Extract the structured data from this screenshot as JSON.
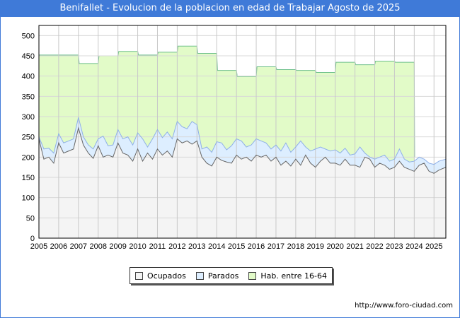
{
  "chart_data": {
    "type": "area",
    "title": "Benifallet - Evolucion de la poblacion en edad de Trabajar Agosto de 2025",
    "xlabel": "",
    "ylabel": "",
    "ylim": [
      0,
      525
    ],
    "xlim": [
      2005,
      2025.6
    ],
    "yticks": [
      "0",
      "50",
      "100",
      "150",
      "200",
      "250",
      "300",
      "350",
      "400",
      "450",
      "500"
    ],
    "xticks": [
      "2005",
      "2006",
      "2007",
      "2008",
      "2009",
      "2010",
      "2011",
      "2012",
      "2013",
      "2014",
      "2015",
      "2016",
      "2017",
      "2018",
      "2019",
      "2020",
      "2021",
      "2022",
      "2023",
      "2024",
      "2025"
    ],
    "grid": true,
    "legend_position": "bottom",
    "x_step": "quarterly from 2005",
    "series": [
      {
        "name": "Ocupados",
        "color": "#f4f4f4",
        "line": "#666666",
        "values": [
          245,
          195,
          200,
          185,
          235,
          210,
          215,
          220,
          272,
          230,
          210,
          197,
          228,
          200,
          205,
          200,
          235,
          210,
          205,
          190,
          220,
          190,
          210,
          195,
          220,
          205,
          215,
          200,
          245,
          235,
          240,
          232,
          240,
          200,
          185,
          178,
          200,
          192,
          188,
          185,
          205,
          195,
          200,
          190,
          205,
          200,
          205,
          190,
          200,
          180,
          190,
          178,
          195,
          180,
          205,
          185,
          175,
          190,
          200,
          185,
          185,
          180,
          195,
          180,
          180,
          175,
          200,
          195,
          175,
          185,
          180,
          170,
          175,
          190,
          175,
          170,
          165,
          180,
          185,
          165,
          160,
          168,
          175
        ]
      },
      {
        "name": "Parados",
        "color": "#ddeeff",
        "line": "#8fb0e8",
        "values": [
          5,
          25,
          22,
          25,
          23,
          25,
          25,
          25,
          26,
          20,
          20,
          23,
          17,
          52,
          23,
          30,
          33,
          35,
          45,
          40,
          40,
          55,
          15,
          50,
          48,
          43,
          47,
          45,
          43,
          40,
          30,
          56,
          40,
          20,
          40,
          34,
          38,
          43,
          30,
          43,
          40,
          45,
          25,
          40,
          40,
          40,
          30,
          30,
          30,
          35,
          45,
          34,
          30,
          60,
          20,
          30,
          45,
          35,
          20,
          30,
          33,
          30,
          27,
          25,
          28,
          50,
          10,
          5,
          20,
          15,
          25,
          20,
          20,
          30,
          20,
          18,
          25,
          20,
          10,
          20,
          22,
          22,
          20
        ]
      },
      {
        "name": "Hab. entre 16-64",
        "color": "#e2fbc8",
        "line": "#6dbf8a",
        "years": [
          2005,
          2006,
          2007,
          2008,
          2009,
          2010,
          2011,
          2012,
          2013,
          2014,
          2015,
          2016,
          2017,
          2018,
          2019,
          2020,
          2021,
          2022,
          2023
        ],
        "values": [
          452,
          452,
          431,
          450,
          461,
          452,
          459,
          474,
          456,
          414,
          399,
          423,
          416,
          414,
          409,
          434,
          428,
          437,
          434
        ]
      }
    ]
  },
  "legend": {
    "items": [
      "Ocupados",
      "Parados",
      "Hab. entre 16-64"
    ]
  },
  "watermark": "FORO-CIUDAD.COM",
  "footer_url": "http://www.foro-ciudad.com"
}
